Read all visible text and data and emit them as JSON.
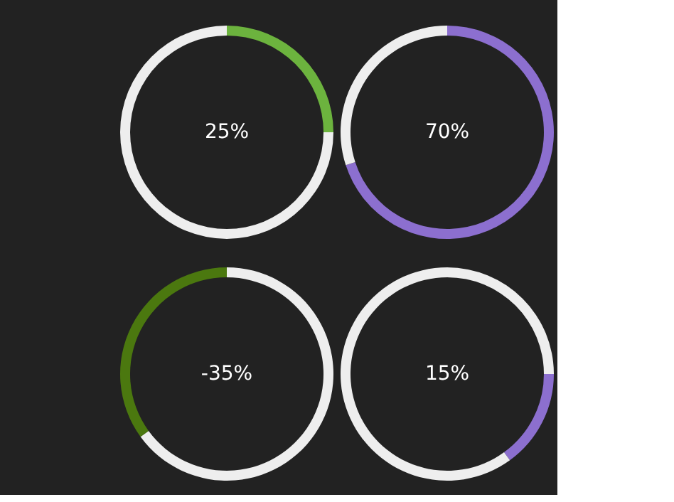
{
  "chart_data": [
    {
      "type": "donut",
      "categories": [
        null,
        null
      ],
      "values": [
        25,
        75
      ],
      "colors": [
        "#6cb33e",
        "#eeeeee"
      ],
      "annotations": [
        "25%"
      ]
    },
    {
      "type": "donut",
      "categories": [
        null,
        null
      ],
      "values": [
        70,
        30
      ],
      "colors": [
        "#8c6fcf",
        "#eeeeee"
      ],
      "annotations": [
        "70%"
      ]
    },
    {
      "type": "donut",
      "categories": [
        null,
        null
      ],
      "values": [
        65,
        35
      ],
      "colors": [
        "#eeeeee",
        "#4b780f"
      ],
      "annotations": [
        "-35%"
      ]
    },
    {
      "type": "donut",
      "categories": [
        null,
        null,
        null
      ],
      "values": [
        25,
        15,
        60
      ],
      "colors": [
        "#eeeeee",
        "#8c6fcf",
        "#eeeeee"
      ],
      "annotations": [
        "15%"
      ]
    }
  ]
}
